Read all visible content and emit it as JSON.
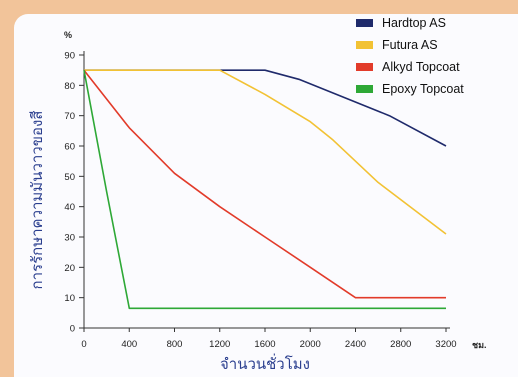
{
  "chart_data": {
    "type": "line",
    "title": "",
    "xlabel": "จำนวนชั่วโมง",
    "ylabel": "การรักษาความมันวาวของสี",
    "xunit": "ชม.",
    "yunit": "%",
    "xlim": [
      0,
      3200
    ],
    "ylim": [
      0,
      90
    ],
    "xticks": [
      0,
      400,
      800,
      1200,
      1600,
      2000,
      2400,
      2800,
      3200
    ],
    "yticks": [
      0,
      10,
      20,
      30,
      40,
      50,
      60,
      70,
      80,
      90
    ],
    "grid": false,
    "legend_position": "top-right",
    "series": [
      {
        "name": "Hardtop AS",
        "color": "#1f2a6b",
        "points": [
          [
            0,
            85
          ],
          [
            400,
            85
          ],
          [
            800,
            85
          ],
          [
            1200,
            85
          ],
          [
            1600,
            85
          ],
          [
            1900,
            82
          ],
          [
            2300,
            76
          ],
          [
            2700,
            70
          ],
          [
            3200,
            60
          ]
        ]
      },
      {
        "name": "Futura AS",
        "color": "#f2c234",
        "points": [
          [
            0,
            85
          ],
          [
            400,
            85
          ],
          [
            800,
            85
          ],
          [
            1200,
            85
          ],
          [
            1600,
            77
          ],
          [
            2000,
            68
          ],
          [
            2200,
            62
          ],
          [
            2600,
            48
          ],
          [
            3200,
            31
          ]
        ]
      },
      {
        "name": "Alkyd Topcoat",
        "color": "#e23b2a",
        "points": [
          [
            0,
            85
          ],
          [
            400,
            66
          ],
          [
            800,
            51
          ],
          [
            1200,
            40
          ],
          [
            1600,
            30
          ],
          [
            2000,
            20
          ],
          [
            2400,
            10
          ],
          [
            2800,
            10
          ],
          [
            3200,
            10
          ]
        ]
      },
      {
        "name": "Epoxy Topcoat",
        "color": "#2ea836",
        "points": [
          [
            0,
            85
          ],
          [
            200,
            45
          ],
          [
            400,
            6.5
          ],
          [
            800,
            6.5
          ],
          [
            1600,
            6.5
          ],
          [
            2400,
            6.5
          ],
          [
            3200,
            6.5
          ]
        ]
      }
    ]
  }
}
